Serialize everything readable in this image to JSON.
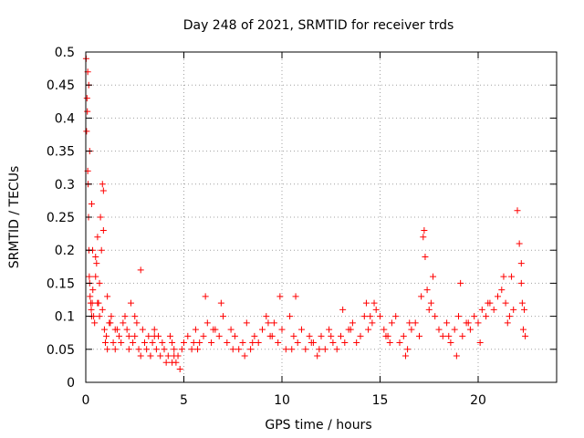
{
  "chart_data": {
    "type": "scatter",
    "title": "Day 248 of 2021, SRMTID for receiver trds",
    "xlabel": "GPS time / hours",
    "ylabel": "SRMTID / TECUs",
    "xlim": [
      0,
      24
    ],
    "ylim": [
      0,
      0.5
    ],
    "xticks": [
      0,
      5,
      10,
      15,
      20
    ],
    "xtick_labels": [
      "0",
      "5",
      "10",
      "15",
      "20"
    ],
    "yticks": [
      0,
      0.05,
      0.1,
      0.15,
      0.2,
      0.25,
      0.3,
      0.35,
      0.4,
      0.45,
      0.5
    ],
    "ytick_labels": [
      "0",
      "0.05",
      "0.1",
      "0.15",
      "0.2",
      "0.25",
      "0.3",
      "0.35",
      "0.4",
      "0.45",
      "0.5"
    ],
    "grid": true,
    "marker": "+",
    "color": "#ff0000",
    "series": [
      {
        "name": "SRMTID",
        "x": [
          0.02,
          0.04,
          0.06,
          0.08,
          0.1,
          0.12,
          0.14,
          0.16,
          0.18,
          0.2,
          0.22,
          0.25,
          0.28,
          0.3,
          0.33,
          0.36,
          0.4,
          0.45,
          0.5,
          0.55,
          0.6,
          0.65,
          0.7,
          0.75,
          0.8,
          0.85,
          0.9,
          0.95,
          1.0,
          1.05,
          1.1,
          1.2,
          1.3,
          1.4,
          1.5,
          1.6,
          1.7,
          1.8,
          1.9,
          2.0,
          2.1,
          2.2,
          2.3,
          2.4,
          2.5,
          2.6,
          2.7,
          2.8,
          2.9,
          3.0,
          3.1,
          3.2,
          3.3,
          3.4,
          3.5,
          3.6,
          3.7,
          3.8,
          3.9,
          4.0,
          4.1,
          4.2,
          4.3,
          4.4,
          4.5,
          4.6,
          4.7,
          4.8,
          4.9,
          5.0,
          5.2,
          5.4,
          5.6,
          5.8,
          6.0,
          6.2,
          6.4,
          6.6,
          6.8,
          7.0,
          7.2,
          7.4,
          7.6,
          7.8,
          8.0,
          8.2,
          8.4,
          8.6,
          8.8,
          9.0,
          9.2,
          9.4,
          9.6,
          9.8,
          10.0,
          10.2,
          10.4,
          10.6,
          10.8,
          11.0,
          11.2,
          11.4,
          11.6,
          11.8,
          12.0,
          12.2,
          12.4,
          12.6,
          12.8,
          13.0,
          13.2,
          13.4,
          13.6,
          13.8,
          14.0,
          14.2,
          14.4,
          14.6,
          14.8,
          15.0,
          15.2,
          15.4,
          15.6,
          15.8,
          16.0,
          16.2,
          16.4,
          16.6,
          16.8,
          17.0,
          17.1,
          17.2,
          17.25,
          17.3,
          17.4,
          17.6,
          17.8,
          18.0,
          18.2,
          18.4,
          18.6,
          18.8,
          19.0,
          19.2,
          19.4,
          19.6,
          19.8,
          20.0,
          20.2,
          20.4,
          20.6,
          20.8,
          21.0,
          21.2,
          21.4,
          21.6,
          21.8,
          22.0,
          22.1,
          22.2,
          22.3,
          22.4,
          0.1,
          0.2,
          0.3,
          0.5,
          0.7,
          0.9,
          1.1,
          1.5,
          2.5,
          3.5,
          4.5,
          5.5,
          6.5,
          7.5,
          8.5,
          9.5,
          10.5,
          11.5,
          12.5,
          13.5,
          14.5,
          15.5,
          16.5,
          17.5,
          18.5,
          19.5,
          20.5,
          21.5,
          22.2,
          0.15,
          0.35,
          0.6,
          0.85,
          1.25,
          2.2,
          3.3,
          4.4,
          5.7,
          6.9,
          8.1,
          9.3,
          10.7,
          11.9,
          13.1,
          14.3,
          15.3,
          16.3,
          17.7,
          18.9,
          20.1,
          21.3,
          22.35,
          2.8,
          6.1,
          9.9,
          14.7,
          19.1,
          21.7,
          22.25
        ],
        "y": [
          0.49,
          0.38,
          0.43,
          0.41,
          0.32,
          0.3,
          0.25,
          0.2,
          0.16,
          0.15,
          0.13,
          0.12,
          0.11,
          0.1,
          0.12,
          0.14,
          0.1,
          0.09,
          0.16,
          0.18,
          0.22,
          0.12,
          0.1,
          0.25,
          0.2,
          0.3,
          0.29,
          0.08,
          0.06,
          0.07,
          0.05,
          0.09,
          0.1,
          0.06,
          0.05,
          0.08,
          0.07,
          0.06,
          0.09,
          0.1,
          0.08,
          0.05,
          0.12,
          0.06,
          0.07,
          0.09,
          0.05,
          0.04,
          0.08,
          0.06,
          0.05,
          0.07,
          0.04,
          0.06,
          0.08,
          0.05,
          0.07,
          0.04,
          0.06,
          0.05,
          0.03,
          0.04,
          0.07,
          0.06,
          0.05,
          0.03,
          0.04,
          0.02,
          0.05,
          0.06,
          0.07,
          0.05,
          0.08,
          0.06,
          0.07,
          0.09,
          0.06,
          0.08,
          0.07,
          0.1,
          0.06,
          0.08,
          0.07,
          0.05,
          0.06,
          0.09,
          0.05,
          0.07,
          0.06,
          0.08,
          0.1,
          0.07,
          0.09,
          0.06,
          0.08,
          0.05,
          0.1,
          0.07,
          0.06,
          0.08,
          0.05,
          0.07,
          0.06,
          0.04,
          0.07,
          0.05,
          0.08,
          0.06,
          0.05,
          0.07,
          0.06,
          0.08,
          0.09,
          0.06,
          0.07,
          0.1,
          0.08,
          0.09,
          0.11,
          0.1,
          0.08,
          0.07,
          0.09,
          0.1,
          0.06,
          0.07,
          0.05,
          0.08,
          0.09,
          0.07,
          0.13,
          0.22,
          0.23,
          0.19,
          0.14,
          0.12,
          0.1,
          0.08,
          0.07,
          0.09,
          0.06,
          0.08,
          0.1,
          0.07,
          0.09,
          0.08,
          0.1,
          0.09,
          0.11,
          0.1,
          0.12,
          0.11,
          0.13,
          0.14,
          0.12,
          0.1,
          0.11,
          0.26,
          0.21,
          0.15,
          0.08,
          0.07,
          0.47,
          0.35,
          0.27,
          0.19,
          0.15,
          0.23,
          0.13,
          0.08,
          0.1,
          0.07,
          0.04,
          0.06,
          0.08,
          0.05,
          0.06,
          0.07,
          0.05,
          0.06,
          0.07,
          0.08,
          0.1,
          0.06,
          0.09,
          0.11,
          0.07,
          0.09,
          0.12,
          0.09,
          0.18,
          0.45,
          0.2,
          0.12,
          0.11,
          0.09,
          0.07,
          0.04,
          0.03,
          0.05,
          0.12,
          0.04,
          0.09,
          0.13,
          0.05,
          0.11,
          0.12,
          0.07,
          0.04,
          0.16,
          0.04,
          0.06,
          0.16,
          0.11,
          0.17,
          0.13,
          0.13,
          0.12,
          0.15,
          0.16,
          0.12
        ]
      }
    ]
  }
}
